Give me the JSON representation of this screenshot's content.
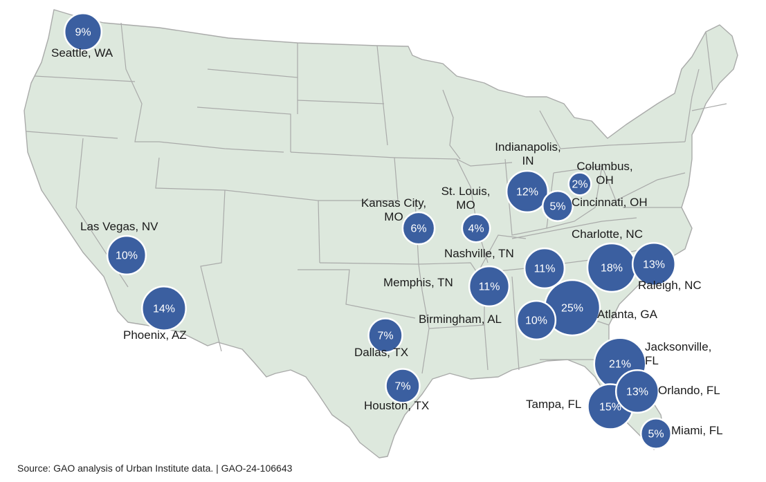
{
  "colors": {
    "land": "#dde8dd",
    "border": "#a9aaa9",
    "bubble": "#3b5fa0",
    "bubble_outline": "#ffffff",
    "text": "#1a1a1a"
  },
  "cities": [
    {
      "id": "seattle",
      "name_lines": [
        "Seattle, WA"
      ],
      "percent": "9%",
      "value": 9
    },
    {
      "id": "las-vegas",
      "name_lines": [
        "Las Vegas, NV"
      ],
      "percent": "10%",
      "value": 10
    },
    {
      "id": "phoenix",
      "name_lines": [
        "Phoenix, AZ"
      ],
      "percent": "14%",
      "value": 14
    },
    {
      "id": "dallas",
      "name_lines": [
        "Dallas, TX"
      ],
      "percent": "7%",
      "value": 7
    },
    {
      "id": "houston",
      "name_lines": [
        "Houston, TX"
      ],
      "percent": "7%",
      "value": 7
    },
    {
      "id": "kansas-city",
      "name_lines": [
        "Kansas City,",
        "MO"
      ],
      "percent": "6%",
      "value": 6
    },
    {
      "id": "st-louis",
      "name_lines": [
        "St. Louis,",
        "MO"
      ],
      "percent": "4%",
      "value": 4
    },
    {
      "id": "memphis",
      "name_lines": [
        "Memphis, TN"
      ],
      "percent": "11%",
      "value": 11
    },
    {
      "id": "nashville",
      "name_lines": [
        "Nashville, TN"
      ],
      "percent": "11%",
      "value": 11
    },
    {
      "id": "birmingham",
      "name_lines": [
        "Birmingham, AL"
      ],
      "percent": "10%",
      "value": 10
    },
    {
      "id": "atlanta",
      "name_lines": [
        "Atlanta, GA"
      ],
      "percent": "25%",
      "value": 25
    },
    {
      "id": "indianapolis",
      "name_lines": [
        "Indianapolis,",
        "IN"
      ],
      "percent": "12%",
      "value": 12
    },
    {
      "id": "cincinnati",
      "name_lines": [
        "Cincinnati, OH"
      ],
      "percent": "5%",
      "value": 5
    },
    {
      "id": "columbus",
      "name_lines": [
        "Columbus,",
        "OH"
      ],
      "percent": "2%",
      "value": 2
    },
    {
      "id": "charlotte",
      "name_lines": [
        "Charlotte, NC"
      ],
      "percent": "18%",
      "value": 18
    },
    {
      "id": "raleigh",
      "name_lines": [
        "Raleigh, NC"
      ],
      "percent": "13%",
      "value": 13
    },
    {
      "id": "jacksonville",
      "name_lines": [
        "Jacksonville,",
        "FL"
      ],
      "percent": "21%",
      "value": 21
    },
    {
      "id": "orlando",
      "name_lines": [
        "Orlando, FL"
      ],
      "percent": "13%",
      "value": 13
    },
    {
      "id": "tampa",
      "name_lines": [
        "Tampa, FL"
      ],
      "percent": "15%",
      "value": 15
    },
    {
      "id": "miami",
      "name_lines": [
        "Miami, FL"
      ],
      "percent": "5%",
      "value": 5
    }
  ],
  "source": "Source: GAO analysis of Urban Institute data.  |  GAO-24-106643"
}
